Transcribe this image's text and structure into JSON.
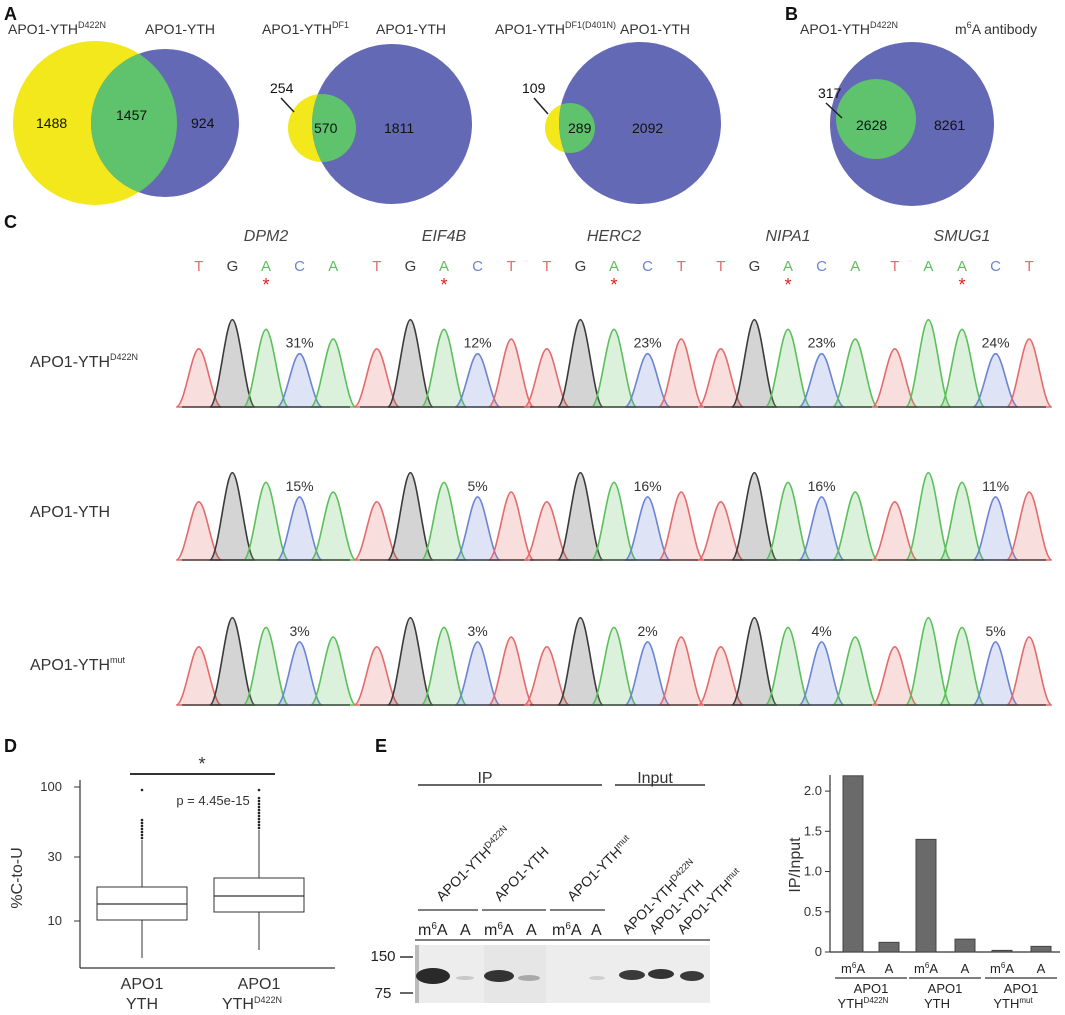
{
  "colors": {
    "yellow": "#f2e81c",
    "blue": "#6469b5",
    "green": "#5fc26d",
    "trace_T": "#e46b6b",
    "trace_G": "#3a3a3a",
    "trace_A": "#5cbf5c",
    "trace_C": "#6b84d4",
    "asterisk": "#e02020",
    "bar": "#6a6a6a"
  },
  "panel_labels": {
    "a": "A",
    "b": "B",
    "c": "C",
    "d": "D",
    "e": "E"
  },
  "venn": [
    {
      "left_title": "APO1-YTH",
      "left_sup": "D422N",
      "right_title": "APO1-YTH",
      "left_only": "1488",
      "overlap": "1457",
      "right_only": "924"
    },
    {
      "left_title": "APO1-YTH",
      "left_sup": "DF1",
      "right_title": "APO1-YTH",
      "left_only": "254",
      "overlap": "570",
      "right_only": "1811"
    },
    {
      "left_title": "APO1-YTH",
      "left_sup": "DF1(D401N)",
      "right_title": "APO1-YTH",
      "left_only": "109",
      "overlap": "289",
      "right_only": "2092"
    },
    {
      "left_title": "APO1-YTH",
      "left_sup": "D422N",
      "right_title": "A antibody",
      "right_prefix": "m",
      "right_prefix_sup": "6",
      "left_only": "317",
      "overlap": "2628",
      "right_only": "8261"
    }
  ],
  "chromatograms": {
    "genes": [
      {
        "name": "DPM2",
        "bases": [
          "T",
          "G",
          "A",
          "C",
          "A"
        ]
      },
      {
        "name": "EIF4B",
        "bases": [
          "T",
          "G",
          "A",
          "C",
          "T"
        ]
      },
      {
        "name": "HERC2",
        "bases": [
          "T",
          "G",
          "A",
          "C",
          "T"
        ]
      },
      {
        "name": "NIPA1",
        "bases": [
          "T",
          "G",
          "A",
          "C",
          "A"
        ]
      },
      {
        "name": "SMUG1",
        "bases": [
          "T",
          "A",
          "A",
          "C",
          "T"
        ]
      }
    ],
    "asterisk": "*",
    "rows": [
      {
        "label": "APO1-YTH",
        "sup": "D422N",
        "percents": [
          "31%",
          "12%",
          "23%",
          "23%",
          "24%"
        ]
      },
      {
        "label": "APO1-YTH",
        "sup": "",
        "percents": [
          "15%",
          "5%",
          "16%",
          "16%",
          "11%"
        ]
      },
      {
        "label": "APO1-YTH",
        "sup": "mut",
        "percents": [
          "3%",
          "3%",
          "2%",
          "4%",
          "5%"
        ]
      }
    ]
  },
  "boxplot": {
    "ylabel": "%C-to-U",
    "yticks": [
      "10",
      "30",
      "100"
    ],
    "significance": "*",
    "pvalue": "p = 4.45e-15",
    "groups": [
      {
        "line1": "APO1",
        "line2": "YTH",
        "sup": ""
      },
      {
        "line1": "APO1",
        "line2": "YTH",
        "sup": "D422N"
      }
    ]
  },
  "western": {
    "ip_label": "IP",
    "input_label": "Input",
    "lane_groups": [
      {
        "name": "APO1-YTH",
        "sup": "D422N"
      },
      {
        "name": "APO1-YTH",
        "sup": ""
      },
      {
        "name": "APO1-YTH",
        "sup": "mut"
      }
    ],
    "input_lanes": [
      {
        "name": "APO1-YTH",
        "sup": "D422N"
      },
      {
        "name": "APO1-YTH",
        "sup": ""
      },
      {
        "name": "APO1-YTH",
        "sup": "mut"
      }
    ],
    "lane_m": "m",
    "lane_m_sup": "6",
    "lane_a": "A",
    "markers": [
      "150",
      "75"
    ]
  },
  "chart_data": {
    "type": "bar",
    "ylabel": "IP/Input",
    "ylim": [
      0,
      2.2
    ],
    "yticks": [
      "0",
      "0.5",
      "1.0",
      "1.5",
      "2.0"
    ],
    "categories": [
      "m6A",
      "A",
      "m6A",
      "A",
      "m6A",
      "A"
    ],
    "values": [
      2.19,
      0.12,
      1.4,
      0.16,
      0.02,
      0.07
    ],
    "groups": [
      {
        "line1": "APO1",
        "line2": "YTH",
        "sup": "D422N"
      },
      {
        "line1": "APO1",
        "line2": "YTH",
        "sup": ""
      },
      {
        "line1": "APO1",
        "line2": "YTH",
        "sup": "mut"
      }
    ]
  }
}
